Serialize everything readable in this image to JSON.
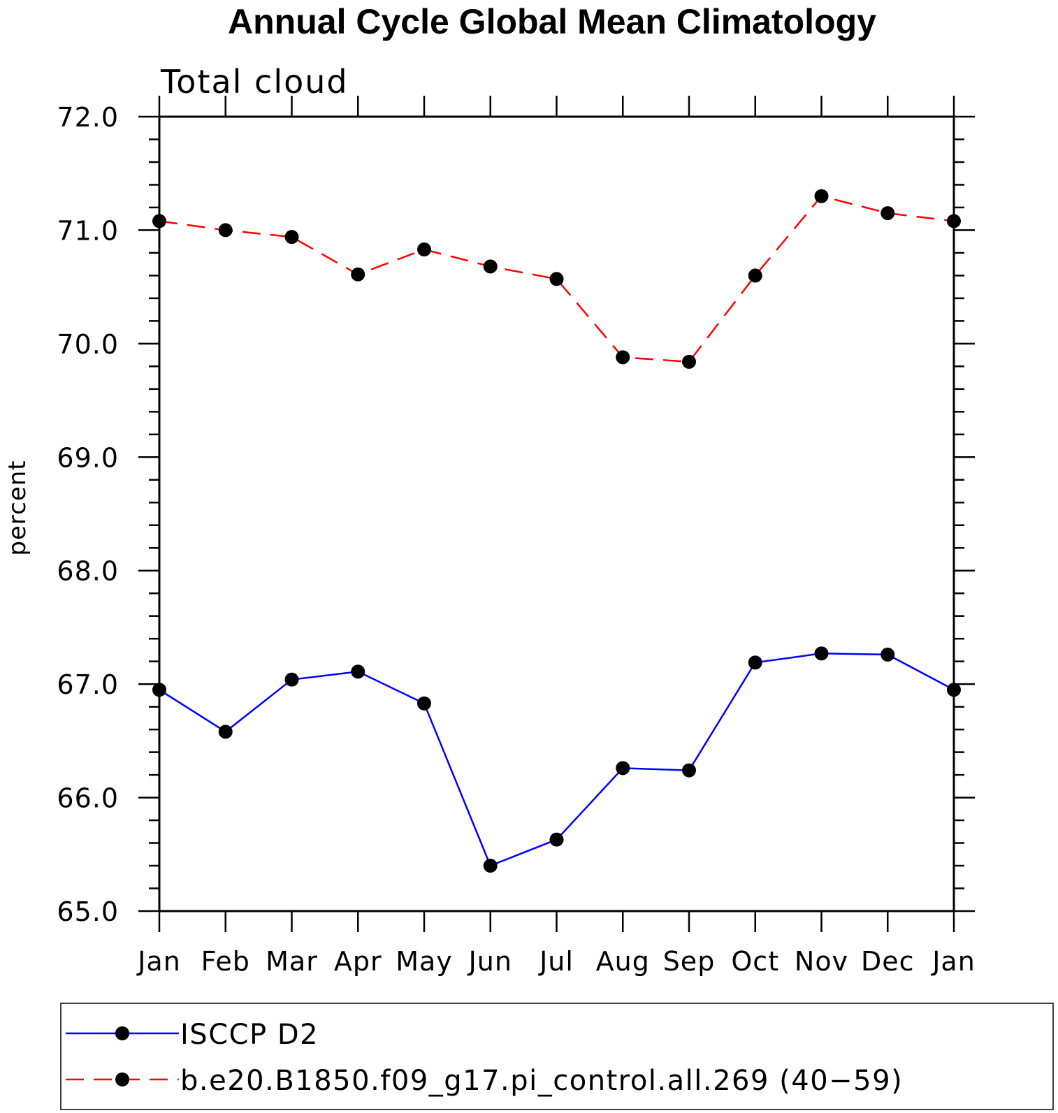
{
  "chart_data": {
    "type": "line",
    "title": "Annual Cycle Global Mean Climatology",
    "subtitle": "Total cloud",
    "xlabel": "",
    "ylabel": "percent",
    "categories": [
      "Jan",
      "Feb",
      "Mar",
      "Apr",
      "May",
      "Jun",
      "Jul",
      "Aug",
      "Sep",
      "Oct",
      "Nov",
      "Dec",
      "Jan"
    ],
    "ylim": [
      65.0,
      72.0
    ],
    "yticks": [
      "65.0",
      "66.0",
      "67.0",
      "68.0",
      "69.0",
      "70.0",
      "71.0",
      "72.0"
    ],
    "legend_position": "bottom",
    "series": [
      {
        "name": "ISCCP D2",
        "color": "#0000ff",
        "dash": "solid",
        "marker": "filled-circle",
        "values": [
          66.95,
          66.58,
          67.04,
          67.11,
          66.83,
          65.4,
          65.63,
          66.26,
          66.24,
          67.19,
          67.27,
          67.26,
          66.95
        ]
      },
      {
        "name": "b.e20.B1850.f09_g17.pi_control.all.269 (40−59)",
        "color": "#ff0000",
        "dash": "dashed",
        "marker": "filled-circle",
        "values": [
          71.08,
          71.0,
          70.94,
          70.61,
          70.83,
          70.68,
          70.57,
          69.88,
          69.84,
          70.6,
          71.3,
          71.15,
          71.08
        ]
      }
    ]
  }
}
